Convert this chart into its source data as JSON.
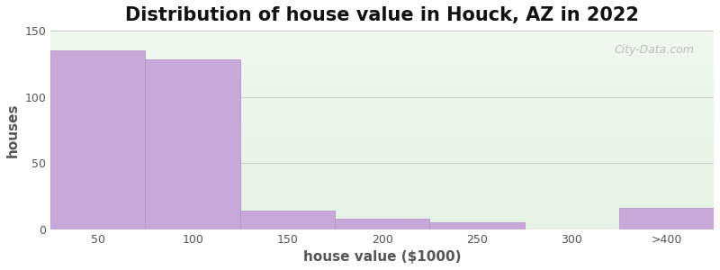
{
  "title": "Distribution of house value in Houck, AZ in 2022",
  "xlabel": "house value ($1000)",
  "ylabel": "houses",
  "outer_bg_color": "#00EEEE",
  "plot_bg_top": "#e8f5e9",
  "plot_bg_bottom": "#f0f8f0",
  "bar_color": "#c8a8d8",
  "bar_edge_color": "#b090c0",
  "grid_color": "#d0d0d0",
  "categories": [
    "50",
    "100",
    "150",
    "200",
    "250",
    "300",
    ">400"
  ],
  "values": [
    135,
    128,
    14,
    8,
    5,
    0,
    16
  ],
  "ylim": [
    0,
    150
  ],
  "yticks": [
    0,
    50,
    100,
    150
  ],
  "title_fontsize": 15,
  "axis_label_fontsize": 11,
  "tick_fontsize": 9,
  "tick_color": "#555555",
  "watermark_text": "City-Data.com",
  "watermark_color": "#bbbbbb",
  "fig_bg": "#ffffff"
}
